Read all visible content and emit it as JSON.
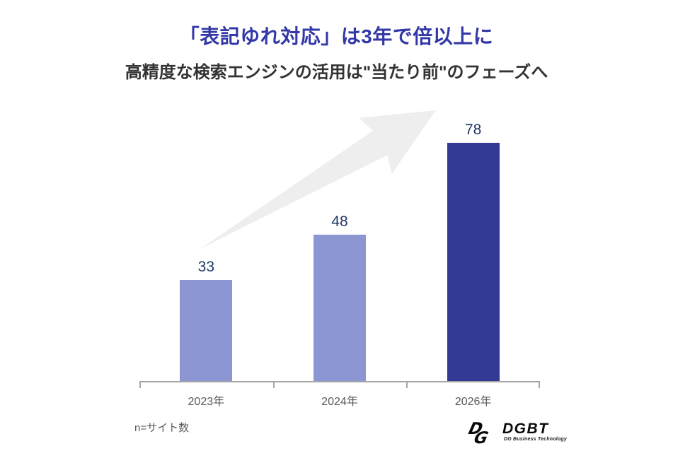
{
  "header": {
    "title": "「表記ゆれ対応」は3年で倍以上に",
    "subtitle": "高精度な検索エンジンの活用は\"当たり前\"のフェーズへ"
  },
  "chart_data": {
    "type": "bar",
    "categories": [
      "2023年",
      "2024年",
      "2026年"
    ],
    "values": [
      33,
      48,
      78
    ],
    "series": [
      {
        "name": "サイト数",
        "values": [
          33,
          48,
          78
        ]
      }
    ],
    "title": "「表記ゆれ対応」は3年で倍以上に",
    "subtitle": "高精度な検索エンジンの活用は\"当たり前\"のフェーズへ",
    "xlabel": "",
    "ylabel": "",
    "ylim": [
      0,
      90
    ],
    "grid": false,
    "legend": "none",
    "y_axis_visible": false,
    "bar_colors": [
      "#8B96D3",
      "#8B96D3",
      "#333A96"
    ],
    "value_label_color": "#1F3864",
    "annotation": "upward growth arrow (light gray) from 2023 bar toward 2026 bar"
  },
  "footnote": "n=サイト数",
  "logo": {
    "mark": "DG",
    "name": "DGBT",
    "tagline": "DG Business Technology"
  },
  "colors": {
    "title_text": "#3338A6",
    "subtitle_text": "#333333",
    "axis_line": "#A6A6A6",
    "axis_label_text": "#595959",
    "arrow_fill": "#EEEEEE",
    "background": "#FFFFFF",
    "light_bar": "#8B96D3",
    "dark_bar": "#333A96"
  }
}
